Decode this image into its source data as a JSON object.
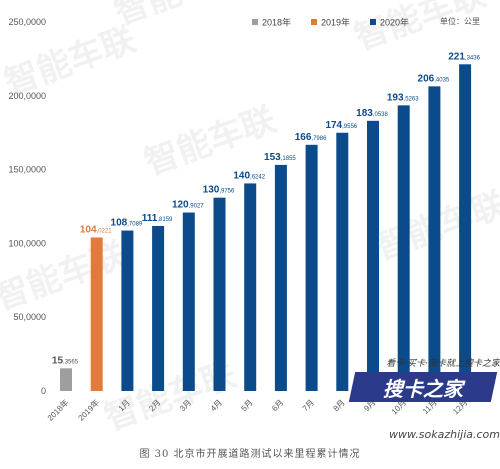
{
  "chart_data": {
    "type": "bar",
    "categories": [
      "2018年",
      "2019年",
      "1月",
      "2月",
      "3月",
      "4月",
      "5月",
      "6月",
      "7月",
      "8月",
      "9月",
      "10月",
      "11月",
      "12月"
    ],
    "values": [
      15.3565,
      104.0221,
      108.7089,
      111.8159,
      120.9027,
      130.9756,
      140.6242,
      153.1855,
      166.7986,
      174.9556,
      183.0538,
      193.5263,
      206.4035,
      221.3436
    ],
    "value_labels": [
      {
        "main": "15",
        "sub": ",3565"
      },
      {
        "main": "104",
        "sub": ",0221"
      },
      {
        "main": "108",
        "sub": ",7089"
      },
      {
        "main": "111",
        "sub": ",8159"
      },
      {
        "main": "120",
        "sub": ",9027"
      },
      {
        "main": "130",
        "sub": ",9756"
      },
      {
        "main": "140",
        "sub": ",6242"
      },
      {
        "main": "153",
        "sub": ",1855"
      },
      {
        "main": "166",
        "sub": ",7986"
      },
      {
        "main": "174",
        "sub": ",9556"
      },
      {
        "main": "183",
        "sub": ",0538"
      },
      {
        "main": "193",
        "sub": ",5263"
      },
      {
        "main": "206",
        "sub": ",4035"
      },
      {
        "main": "221",
        "sub": ",3436"
      }
    ],
    "bar_series": [
      "2018年",
      "2019年",
      "2020年",
      "2020年",
      "2020年",
      "2020年",
      "2020年",
      "2020年",
      "2020年",
      "2020年",
      "2020年",
      "2020年",
      "2020年",
      "2020年"
    ],
    "legend": [
      {
        "name": "2018年",
        "color": "#9e9e9e"
      },
      {
        "name": "2019年",
        "color": "#e07b39"
      },
      {
        "name": "2020年",
        "color": "#0b4a8b"
      }
    ],
    "unit_label": "单位：公里",
    "yticks": [
      "0",
      "50,0000",
      "100,0000",
      "150,0000",
      "200,0000",
      "250,0000"
    ],
    "ytick_values": [
      0,
      50,
      100,
      150,
      200,
      250
    ],
    "ylim": [
      0,
      250
    ],
    "grid": false,
    "legend_position": "top-center"
  },
  "caption": "图 30  北京市开展道路测试以来里程累计情况",
  "watermark": {
    "logo": "搜卡之家",
    "slogan": "看卡·买卡·用卡就上搜卡之家",
    "url": "www.sokazhijia.com",
    "brand": "智能车联"
  }
}
